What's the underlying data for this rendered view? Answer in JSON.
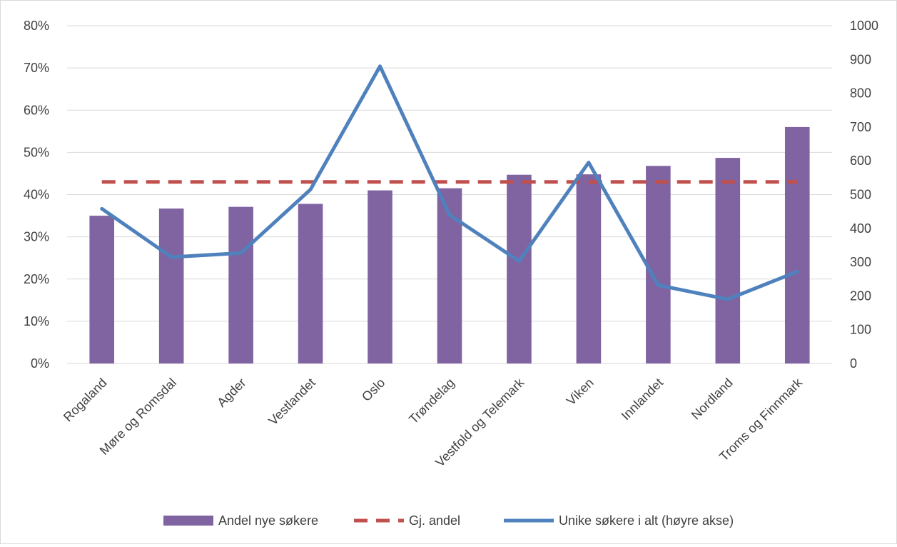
{
  "chart_data": {
    "type": "bar",
    "title": "",
    "categories": [
      "Rogaland",
      "Møre og Romsdal",
      "Agder",
      "Vestlandet",
      "Oslo",
      "Trøndelag",
      "Vestfold og Telemark",
      "Viken",
      "Innlandet",
      "Nordland",
      "Troms og Finnmark"
    ],
    "series": [
      {
        "name": "Andel nye søkere",
        "kind": "bar",
        "axis": "left",
        "color": "#8064a2",
        "values": [
          0.35,
          0.367,
          0.371,
          0.378,
          0.41,
          0.415,
          0.447,
          0.448,
          0.468,
          0.487,
          0.56
        ]
      },
      {
        "name": "Gj. andel",
        "kind": "line-dashed",
        "axis": "left",
        "color": "#c0504d",
        "values": [
          0.43,
          0.43,
          0.43,
          0.43,
          0.43,
          0.43,
          0.43,
          0.43,
          0.43,
          0.43,
          0.43
        ]
      },
      {
        "name": "Unike søkere i alt (høyre akse)",
        "kind": "line",
        "axis": "right",
        "color": "#4f81bd",
        "values": [
          458,
          315,
          327,
          515,
          880,
          440,
          303,
          595,
          232,
          190,
          272
        ]
      }
    ],
    "y_left": {
      "min": 0,
      "max": 0.8,
      "ticks": [
        "0%",
        "10%",
        "20%",
        "30%",
        "40%",
        "50%",
        "60%",
        "70%",
        "80%"
      ]
    },
    "y_right": {
      "min": 0,
      "max": 1000,
      "ticks": [
        "0",
        "100",
        "200",
        "300",
        "400",
        "500",
        "600",
        "700",
        "800",
        "900",
        "1000"
      ]
    },
    "grid": true,
    "legend_position": "bottom"
  }
}
